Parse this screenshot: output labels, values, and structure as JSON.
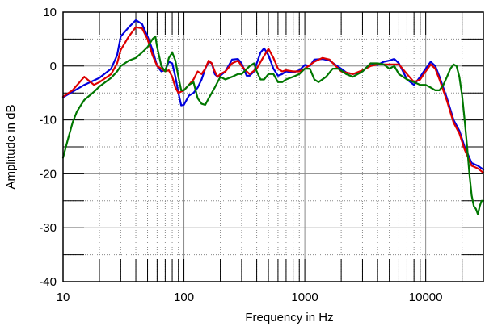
{
  "chart_data": {
    "type": "line",
    "title": "",
    "xlabel": "Frequency in Hz",
    "ylabel": "Amplitude in dB",
    "xscale": "log",
    "xlim": [
      10,
      30000
    ],
    "ylim": [
      -40,
      10
    ],
    "grid": true,
    "legend": "none",
    "x_ticks": [
      {
        "value": 10,
        "label": "10"
      },
      {
        "value": 100,
        "label": "100"
      },
      {
        "value": 1000,
        "label": "1000"
      },
      {
        "value": 10000,
        "label": "10000"
      }
    ],
    "y_ticks": [
      {
        "value": 10,
        "label": "10"
      },
      {
        "value": 0,
        "label": "0"
      },
      {
        "value": -10,
        "label": "-10"
      },
      {
        "value": -20,
        "label": "-20"
      },
      {
        "value": -30,
        "label": "-30"
      },
      {
        "value": -40,
        "label": "-40"
      }
    ],
    "series": [
      {
        "color": "#0000dd",
        "points": [
          [
            10,
            -5.8
          ],
          [
            15,
            -3.5
          ],
          [
            20,
            -2.2
          ],
          [
            25,
            -0.5
          ],
          [
            28,
            2.0
          ],
          [
            30,
            5.5
          ],
          [
            35,
            7.2
          ],
          [
            40,
            8.5
          ],
          [
            45,
            7.8
          ],
          [
            50,
            5.5
          ],
          [
            55,
            3.0
          ],
          [
            60,
            0.0
          ],
          [
            65,
            -1.0
          ],
          [
            70,
            -0.8
          ],
          [
            75,
            0.8
          ],
          [
            80,
            0.5
          ],
          [
            85,
            -2.0
          ],
          [
            90,
            -5.0
          ],
          [
            95,
            -7.3
          ],
          [
            100,
            -7.2
          ],
          [
            110,
            -5.5
          ],
          [
            120,
            -5.0
          ],
          [
            130,
            -4.0
          ],
          [
            140,
            -2.5
          ],
          [
            150,
            -0.5
          ],
          [
            160,
            0.8
          ],
          [
            170,
            0.5
          ],
          [
            180,
            -1.5
          ],
          [
            190,
            -2.0
          ],
          [
            200,
            -1.8
          ],
          [
            220,
            -1.0
          ],
          [
            250,
            1.2
          ],
          [
            280,
            1.3
          ],
          [
            300,
            0.5
          ],
          [
            330,
            -1.8
          ],
          [
            350,
            -1.8
          ],
          [
            380,
            -1.0
          ],
          [
            400,
            0.5
          ],
          [
            430,
            2.5
          ],
          [
            460,
            3.3
          ],
          [
            500,
            2.0
          ],
          [
            550,
            -0.5
          ],
          [
            600,
            -1.8
          ],
          [
            650,
            -1.5
          ],
          [
            700,
            -1.0
          ],
          [
            800,
            -1.2
          ],
          [
            900,
            -0.8
          ],
          [
            1000,
            0.2
          ],
          [
            1100,
            0.0
          ],
          [
            1200,
            1.2
          ],
          [
            1400,
            1.3
          ],
          [
            1600,
            1.0
          ],
          [
            1800,
            0.2
          ],
          [
            2000,
            -0.5
          ],
          [
            2200,
            -1.2
          ],
          [
            2500,
            -1.5
          ],
          [
            3000,
            -1.0
          ],
          [
            3500,
            0.5
          ],
          [
            4000,
            0.2
          ],
          [
            4500,
            0.8
          ],
          [
            5000,
            1.0
          ],
          [
            5500,
            1.3
          ],
          [
            6000,
            0.5
          ],
          [
            7000,
            -2.5
          ],
          [
            8000,
            -3.5
          ],
          [
            9000,
            -2.0
          ],
          [
            10000,
            -0.5
          ],
          [
            11000,
            0.8
          ],
          [
            12000,
            0.0
          ],
          [
            13000,
            -2.0
          ],
          [
            15000,
            -6.0
          ],
          [
            17000,
            -10.0
          ],
          [
            19000,
            -12.0
          ],
          [
            21000,
            -15.0
          ],
          [
            24000,
            -18.0
          ],
          [
            27000,
            -18.5
          ],
          [
            30000,
            -19.2
          ]
        ]
      },
      {
        "color": "#dd0000",
        "points": [
          [
            10,
            -5.7
          ],
          [
            12,
            -4.5
          ],
          [
            15,
            -2.0
          ],
          [
            18,
            -3.5
          ],
          [
            20,
            -3.0
          ],
          [
            25,
            -1.5
          ],
          [
            28,
            0.5
          ],
          [
            30,
            3.0
          ],
          [
            35,
            5.5
          ],
          [
            40,
            7.2
          ],
          [
            45,
            7.0
          ],
          [
            50,
            5.0
          ],
          [
            55,
            2.0
          ],
          [
            60,
            0.0
          ],
          [
            65,
            -0.5
          ],
          [
            70,
            -1.0
          ],
          [
            75,
            -0.8
          ],
          [
            80,
            -2.0
          ],
          [
            85,
            -4.0
          ],
          [
            90,
            -5.0
          ],
          [
            100,
            -4.5
          ],
          [
            110,
            -3.5
          ],
          [
            120,
            -2.5
          ],
          [
            130,
            -1.0
          ],
          [
            140,
            -1.5
          ],
          [
            150,
            -0.5
          ],
          [
            160,
            1.0
          ],
          [
            170,
            0.5
          ],
          [
            180,
            -1.0
          ],
          [
            190,
            -2.0
          ],
          [
            200,
            -1.5
          ],
          [
            220,
            -1.0
          ],
          [
            250,
            0.5
          ],
          [
            280,
            1.0
          ],
          [
            300,
            0.0
          ],
          [
            330,
            -1.0
          ],
          [
            350,
            -1.5
          ],
          [
            400,
            -0.5
          ],
          [
            450,
            1.5
          ],
          [
            500,
            3.2
          ],
          [
            550,
            1.5
          ],
          [
            600,
            -0.5
          ],
          [
            650,
            -1.0
          ],
          [
            700,
            -0.8
          ],
          [
            800,
            -1.0
          ],
          [
            900,
            -1.0
          ],
          [
            1000,
            -0.5
          ],
          [
            1200,
            0.8
          ],
          [
            1400,
            1.5
          ],
          [
            1600,
            1.2
          ],
          [
            1800,
            0.0
          ],
          [
            2000,
            -1.0
          ],
          [
            2500,
            -1.5
          ],
          [
            3000,
            -0.8
          ],
          [
            3500,
            0.0
          ],
          [
            4000,
            0.3
          ],
          [
            5000,
            0.3
          ],
          [
            6000,
            0.3
          ],
          [
            7000,
            -1.5
          ],
          [
            8000,
            -3.0
          ],
          [
            9000,
            -2.5
          ],
          [
            10000,
            -1.0
          ],
          [
            11000,
            0.3
          ],
          [
            12000,
            -0.5
          ],
          [
            13000,
            -2.5
          ],
          [
            15000,
            -6.5
          ],
          [
            17000,
            -10.5
          ],
          [
            19000,
            -12.5
          ],
          [
            21000,
            -15.5
          ],
          [
            24000,
            -18.5
          ],
          [
            27000,
            -19.0
          ],
          [
            30000,
            -19.8
          ]
        ]
      },
      {
        "color": "#007700",
        "points": [
          [
            10,
            -17.0
          ],
          [
            11,
            -13.5
          ],
          [
            12,
            -10.5
          ],
          [
            13,
            -8.5
          ],
          [
            14,
            -7.3
          ],
          [
            15,
            -6.3
          ],
          [
            18,
            -4.8
          ],
          [
            20,
            -3.8
          ],
          [
            25,
            -2.2
          ],
          [
            28,
            -1.0
          ],
          [
            30,
            0.0
          ],
          [
            35,
            1.0
          ],
          [
            40,
            1.5
          ],
          [
            45,
            2.5
          ],
          [
            50,
            3.5
          ],
          [
            55,
            5.0
          ],
          [
            58,
            5.5
          ],
          [
            60,
            3.5
          ],
          [
            65,
            0.0
          ],
          [
            70,
            -1.0
          ],
          [
            75,
            1.5
          ],
          [
            80,
            2.5
          ],
          [
            85,
            1.0
          ],
          [
            90,
            -2.0
          ],
          [
            95,
            -4.5
          ],
          [
            100,
            -4.5
          ],
          [
            110,
            -3.5
          ],
          [
            120,
            -3.0
          ],
          [
            130,
            -6.0
          ],
          [
            140,
            -7.0
          ],
          [
            150,
            -7.2
          ],
          [
            160,
            -6.0
          ],
          [
            180,
            -4.0
          ],
          [
            200,
            -2.0
          ],
          [
            220,
            -2.5
          ],
          [
            250,
            -2.0
          ],
          [
            280,
            -1.5
          ],
          [
            300,
            -1.5
          ],
          [
            350,
            0.0
          ],
          [
            380,
            0.5
          ],
          [
            400,
            -1.0
          ],
          [
            430,
            -2.5
          ],
          [
            460,
            -2.5
          ],
          [
            500,
            -1.5
          ],
          [
            550,
            -1.5
          ],
          [
            600,
            -3.0
          ],
          [
            650,
            -3.0
          ],
          [
            700,
            -2.5
          ],
          [
            800,
            -2.0
          ],
          [
            900,
            -1.5
          ],
          [
            1000,
            -0.5
          ],
          [
            1100,
            -0.5
          ],
          [
            1200,
            -2.5
          ],
          [
            1300,
            -3.0
          ],
          [
            1500,
            -2.0
          ],
          [
            1700,
            -0.5
          ],
          [
            1900,
            -0.5
          ],
          [
            2200,
            -1.5
          ],
          [
            2500,
            -2.0
          ],
          [
            3000,
            -1.0
          ],
          [
            3500,
            0.5
          ],
          [
            4000,
            0.5
          ],
          [
            4500,
            0.3
          ],
          [
            5000,
            -0.5
          ],
          [
            5500,
            0.0
          ],
          [
            6000,
            -1.5
          ],
          [
            7000,
            -2.5
          ],
          [
            8000,
            -3.0
          ],
          [
            9000,
            -3.5
          ],
          [
            10000,
            -3.5
          ],
          [
            11000,
            -4.0
          ],
          [
            12000,
            -4.5
          ],
          [
            13000,
            -4.5
          ],
          [
            14000,
            -3.5
          ],
          [
            15000,
            -2.0
          ],
          [
            16000,
            -0.5
          ],
          [
            17000,
            0.3
          ],
          [
            18000,
            0.0
          ],
          [
            19000,
            -2.0
          ],
          [
            20000,
            -5.5
          ],
          [
            21000,
            -10.0
          ],
          [
            22000,
            -15.0
          ],
          [
            23000,
            -20.0
          ],
          [
            24000,
            -24.0
          ],
          [
            25000,
            -26.0
          ],
          [
            26000,
            -26.5
          ],
          [
            27000,
            -27.5
          ],
          [
            28000,
            -26.0
          ],
          [
            29000,
            -25.0
          ],
          [
            30000,
            -25.0
          ]
        ]
      }
    ]
  }
}
